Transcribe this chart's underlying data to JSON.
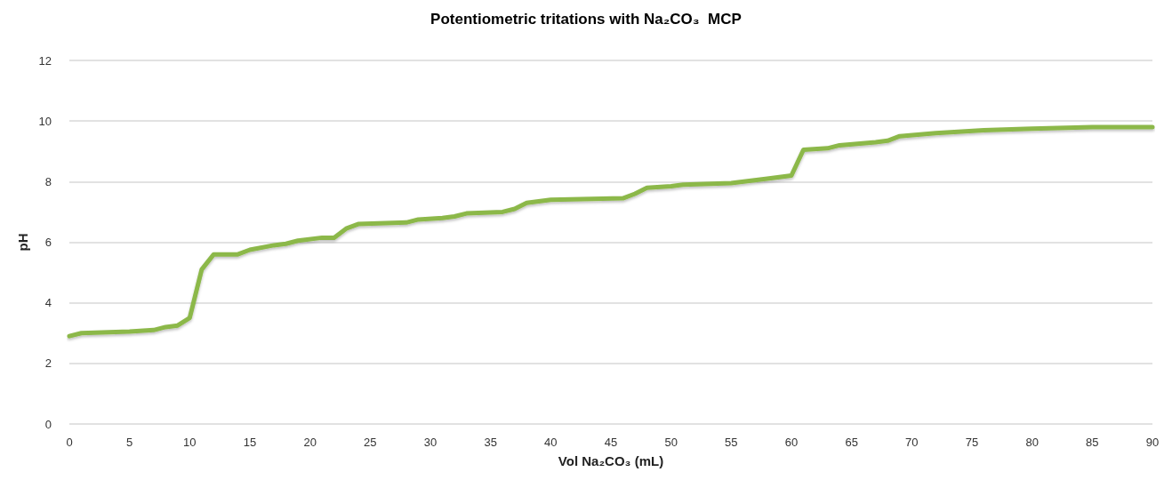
{
  "chart_data": {
    "type": "line",
    "title": "Potentiometric tritations with Na₂CO₃  MCP",
    "xlabel": "Vol Na₂CO₃ (mL)",
    "ylabel": "pH",
    "series": [
      {
        "color": "#8cb84a",
        "x": [
          0,
          1,
          5,
          7,
          8,
          9,
          10,
          11,
          12,
          14,
          15,
          17,
          18,
          19,
          21,
          22,
          23,
          24,
          28,
          29,
          31,
          32,
          33,
          36,
          37,
          38,
          40,
          46,
          47,
          48,
          50,
          51,
          55,
          58,
          60,
          61,
          63,
          64,
          67,
          68,
          69,
          72,
          76,
          80,
          85,
          90
        ],
        "values": [
          2.9,
          3.0,
          3.05,
          3.1,
          3.2,
          3.25,
          3.5,
          5.1,
          5.6,
          5.6,
          5.75,
          5.9,
          5.95,
          6.05,
          6.15,
          6.15,
          6.45,
          6.6,
          6.65,
          6.75,
          6.8,
          6.85,
          6.95,
          7.0,
          7.1,
          7.3,
          7.4,
          7.45,
          7.6,
          7.8,
          7.85,
          7.9,
          7.95,
          8.1,
          8.2,
          9.05,
          9.1,
          9.2,
          9.3,
          9.35,
          9.5,
          9.6,
          9.7,
          9.75,
          9.8,
          9.8
        ]
      }
    ],
    "xlim": [
      0,
      90
    ],
    "xticks": [
      0,
      5,
      10,
      15,
      20,
      25,
      30,
      35,
      40,
      45,
      50,
      55,
      60,
      65,
      70,
      75,
      80,
      85,
      90
    ],
    "ylim": [
      0,
      12
    ],
    "yticks": [
      0,
      2,
      4,
      6,
      8,
      10,
      12
    ],
    "grid": "y",
    "marker": "none",
    "line_style": "solid"
  }
}
